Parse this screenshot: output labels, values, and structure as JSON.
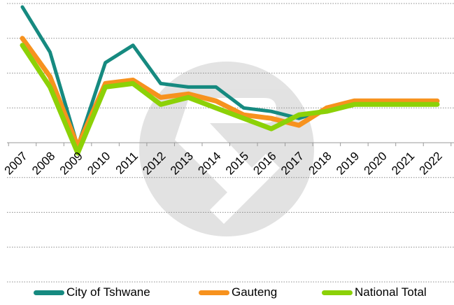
{
  "chart_data": {
    "type": "line",
    "title": "",
    "xlabel": "",
    "ylabel": "",
    "categories": [
      "2007",
      "2008",
      "2009",
      "2010",
      "2011",
      "2012",
      "2013",
      "2014",
      "2015",
      "2016",
      "2017",
      "2018",
      "2019",
      "2020",
      "2021",
      "2022"
    ],
    "ylim": [
      -4,
      4
    ],
    "grid": true,
    "legend_position": "bottom",
    "series": [
      {
        "name": "City of Tshwane",
        "color": "#168A80",
        "values": [
          3.9,
          2.6,
          -0.1,
          2.3,
          2.8,
          1.7,
          1.6,
          1.6,
          1.0,
          0.9,
          0.7,
          null,
          1.2,
          1.2,
          1.2,
          1.2
        ],
        "stroke": 5
      },
      {
        "name": "Gauteng",
        "color": "#F7921E",
        "values": [
          3.0,
          1.9,
          -0.1,
          1.7,
          1.8,
          1.3,
          1.4,
          1.2,
          0.8,
          0.7,
          0.5,
          1.0,
          1.2,
          1.2,
          1.2,
          1.2
        ],
        "stroke": 7
      },
      {
        "name": "National Total",
        "color": "#8CD107",
        "values": [
          2.8,
          1.6,
          -0.3,
          1.6,
          1.7,
          1.1,
          1.3,
          1.0,
          0.7,
          0.4,
          0.8,
          0.9,
          1.1,
          1.1,
          1.1,
          1.1
        ],
        "stroke": 7
      }
    ]
  }
}
